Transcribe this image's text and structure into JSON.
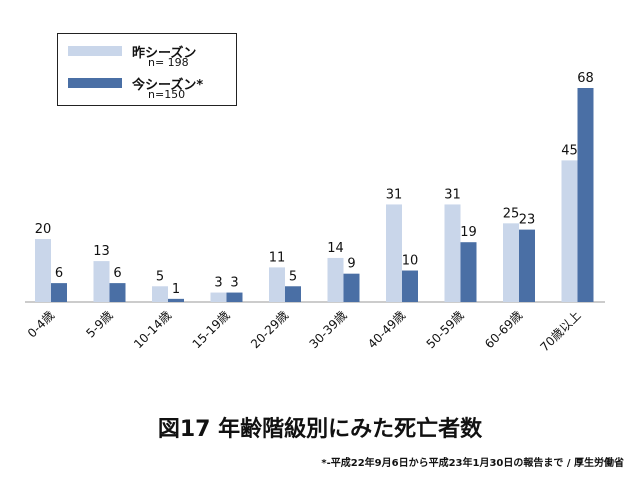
{
  "chart_data": {
    "type": "bar",
    "title": "図17 年齢階級別にみた死亡者数",
    "categories": [
      "0-4歳",
      "5-9歳",
      "10-14歳",
      "15-19歳",
      "20-29歳",
      "30-39歳",
      "40-49歳",
      "50-59歳",
      "60-69歳",
      "70歳以上"
    ],
    "series": [
      {
        "name": "昨シーズン",
        "n_label": "n= 198",
        "color": "#c9d6ea",
        "values": [
          20,
          13,
          5,
          3,
          11,
          14,
          31,
          31,
          25,
          45
        ]
      },
      {
        "name": "今シーズン*",
        "n_label": "n=150",
        "color": "#4a6fa5",
        "values": [
          6,
          6,
          1,
          3,
          5,
          9,
          10,
          19,
          23,
          68
        ]
      }
    ],
    "ylim": [
      0,
      68
    ],
    "xlabel": "",
    "ylabel": "",
    "legend": "top-left",
    "grid": false
  },
  "footnote": "*-平成22年9月6日から平成23年1月30日の報告まで / 厚生労働省"
}
